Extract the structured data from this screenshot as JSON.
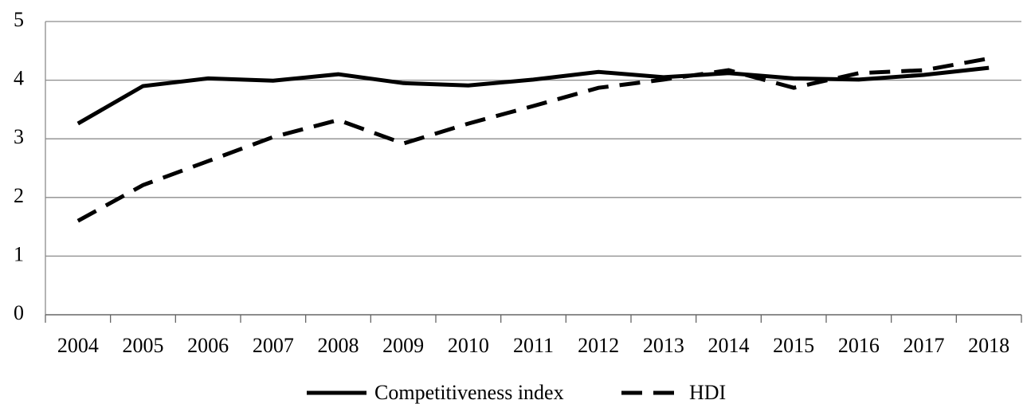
{
  "chart_data": {
    "type": "line",
    "categories": [
      "2004",
      "2005",
      "2006",
      "2007",
      "2008",
      "2009",
      "2010",
      "2011",
      "2012",
      "2013",
      "2014",
      "2015",
      "2016",
      "2017",
      "2018"
    ],
    "series": [
      {
        "name": "Competitiveness index",
        "color": "#000000",
        "dash": false,
        "values": [
          3.26,
          3.9,
          4.03,
          3.99,
          4.1,
          3.95,
          3.91,
          4.01,
          4.14,
          4.05,
          4.12,
          4.03,
          4.01,
          4.09,
          4.21
        ]
      },
      {
        "name": "HDI",
        "color": "#000000",
        "dash": true,
        "values": [
          1.6,
          2.21,
          2.62,
          3.03,
          3.32,
          2.92,
          3.26,
          3.56,
          3.87,
          4.01,
          4.17,
          3.87,
          4.12,
          4.17,
          4.37
        ]
      }
    ],
    "ylim": [
      0,
      5
    ],
    "yticks": [
      0,
      1,
      2,
      3,
      4,
      5
    ],
    "grid": true,
    "legend": "bottom"
  }
}
